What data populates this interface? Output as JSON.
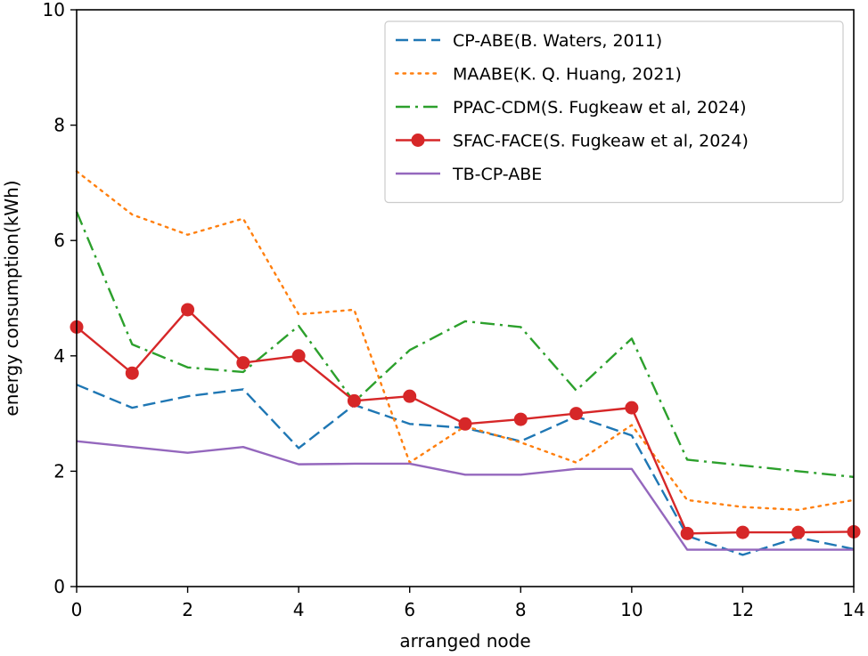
{
  "chart_data": {
    "type": "line",
    "title": "",
    "xlabel": "arranged node",
    "ylabel": "energy consumption(kWh)",
    "xlim": [
      0,
      14
    ],
    "ylim": [
      0,
      10
    ],
    "xticks": [
      0,
      2,
      4,
      6,
      8,
      10,
      12,
      14
    ],
    "yticks": [
      0,
      2,
      4,
      6,
      8,
      10
    ],
    "grid": false,
    "legend_position": "top-right",
    "x": [
      0,
      1,
      2,
      3,
      4,
      5,
      6,
      7,
      8,
      9,
      10,
      11,
      12,
      13,
      14
    ],
    "series": [
      {
        "name": "CP-ABE(B. Waters, 2011)",
        "color": "#1f77b4",
        "style": "dashed",
        "marker": "none",
        "values": [
          3.5,
          3.1,
          3.3,
          3.42,
          2.4,
          3.15,
          2.82,
          2.75,
          2.52,
          2.95,
          2.62,
          0.88,
          0.55,
          0.85,
          0.65
        ]
      },
      {
        "name": "MAABE(K. Q. Huang, 2021)",
        "color": "#ff7f0e",
        "style": "dotted",
        "marker": "none",
        "values": [
          7.2,
          6.45,
          6.1,
          6.38,
          4.72,
          4.8,
          2.15,
          2.78,
          2.5,
          2.15,
          2.8,
          1.5,
          1.38,
          1.33,
          1.5
        ]
      },
      {
        "name": "PPAC-CDM(S. Fugkeaw et al, 2024)",
        "color": "#2ca02c",
        "style": "dashdot",
        "marker": "none",
        "values": [
          6.5,
          4.2,
          3.8,
          3.72,
          4.52,
          3.2,
          4.1,
          4.6,
          4.5,
          3.4,
          4.3,
          2.2,
          2.1,
          2.0,
          1.9
        ]
      },
      {
        "name": "SFAC-FACE(S. Fugkeaw et al, 2024)",
        "color": "#d62728",
        "style": "solid",
        "marker": "circle",
        "values": [
          4.5,
          3.7,
          4.8,
          3.88,
          4.0,
          3.22,
          3.3,
          2.82,
          2.9,
          3.0,
          3.1,
          0.92,
          0.94,
          0.94,
          0.95
        ]
      },
      {
        "name": "TB-CP-ABE",
        "color": "#9467bd",
        "style": "solid",
        "marker": "none",
        "values": [
          2.52,
          2.42,
          2.32,
          2.42,
          2.12,
          2.13,
          2.13,
          1.94,
          1.94,
          2.04,
          2.04,
          0.64,
          0.64,
          0.64,
          0.64
        ]
      }
    ]
  }
}
